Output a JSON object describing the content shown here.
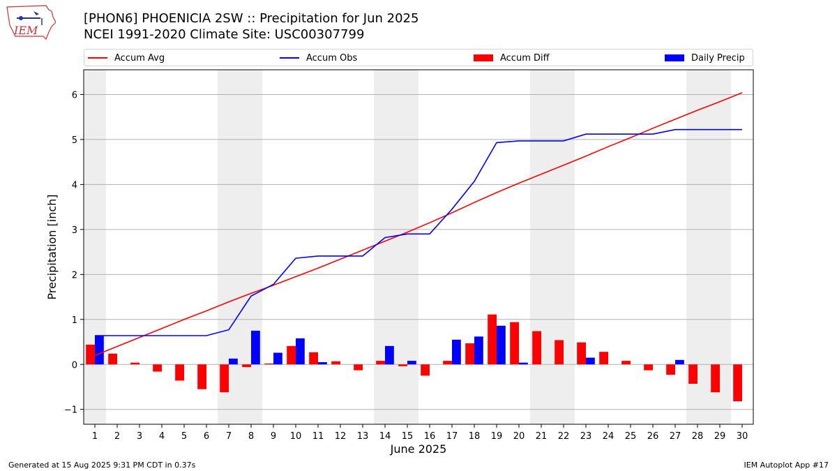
{
  "title_line1": "[PHON6] PHOENICIA 2SW :: Precipitation for Jun 2025",
  "title_line2": "NCEI 1991-2020 Climate Site: USC00307799",
  "logo_text": "IEM",
  "footer_left": "Generated at 15 Aug 2025 9:31 PM CDT in 0.37s",
  "footer_right": "IEM Autoplot App #17",
  "colors": {
    "avg": "#ff0000",
    "obs": "#0000ff",
    "diff": "#ff0000",
    "daily": "#0000ff",
    "weekend": "#eeeeee",
    "grid": "#b0b0b0"
  },
  "chart_data": {
    "type": "bar",
    "xlabel": "June 2025",
    "ylabel": "Precipitation [inch]",
    "ylim": [
      -1.33,
      6.55
    ],
    "yticks": [
      -1,
      0,
      1,
      2,
      3,
      4,
      5,
      6
    ],
    "grid": "horizontal",
    "legend_position": "top",
    "days": [
      1,
      2,
      3,
      4,
      5,
      6,
      7,
      8,
      9,
      10,
      11,
      12,
      13,
      14,
      15,
      16,
      17,
      18,
      19,
      20,
      21,
      22,
      23,
      24,
      25,
      26,
      27,
      28,
      29,
      30
    ],
    "weekend_days": [
      1,
      7,
      8,
      14,
      15,
      21,
      22,
      28,
      29
    ],
    "series": [
      {
        "name": "Accum Avg",
        "type": "line",
        "values": [
          0.2,
          0.4,
          0.6,
          0.8,
          1.0,
          1.19,
          1.39,
          1.58,
          1.76,
          1.95,
          2.14,
          2.34,
          2.54,
          2.74,
          2.94,
          3.15,
          3.37,
          3.6,
          3.82,
          4.03,
          4.23,
          4.43,
          4.63,
          4.84,
          5.04,
          5.25,
          5.45,
          5.65,
          5.84,
          6.04
        ]
      },
      {
        "name": "Accum Obs",
        "type": "line",
        "values": [
          0.64,
          0.64,
          0.64,
          0.64,
          0.64,
          0.64,
          0.77,
          1.52,
          1.78,
          2.36,
          2.41,
          2.41,
          2.41,
          2.82,
          2.9,
          2.9,
          3.45,
          4.07,
          4.93,
          4.97,
          4.97,
          4.97,
          5.12,
          5.12,
          5.12,
          5.12,
          5.22,
          5.22,
          5.22,
          5.22
        ]
      },
      {
        "name": "Accum Diff",
        "type": "bar",
        "values": [
          0.44,
          0.24,
          0.04,
          -0.16,
          -0.36,
          -0.55,
          -0.62,
          -0.06,
          0.02,
          0.41,
          0.27,
          0.07,
          -0.13,
          0.08,
          -0.04,
          -0.25,
          0.08,
          0.47,
          1.11,
          0.94,
          0.74,
          0.54,
          0.49,
          0.28,
          0.08,
          -0.13,
          -0.23,
          -0.43,
          -0.62,
          -0.82
        ]
      },
      {
        "name": "Daily Precip",
        "type": "bar",
        "values": [
          0.64,
          0,
          0,
          0,
          0,
          0,
          0.13,
          0.75,
          0.26,
          0.58,
          0.05,
          0,
          0,
          0.41,
          0.08,
          0,
          0.55,
          0.62,
          0.86,
          0.04,
          0,
          0,
          0.15,
          0,
          0,
          0,
          0.1,
          0,
          0,
          0
        ]
      }
    ]
  }
}
